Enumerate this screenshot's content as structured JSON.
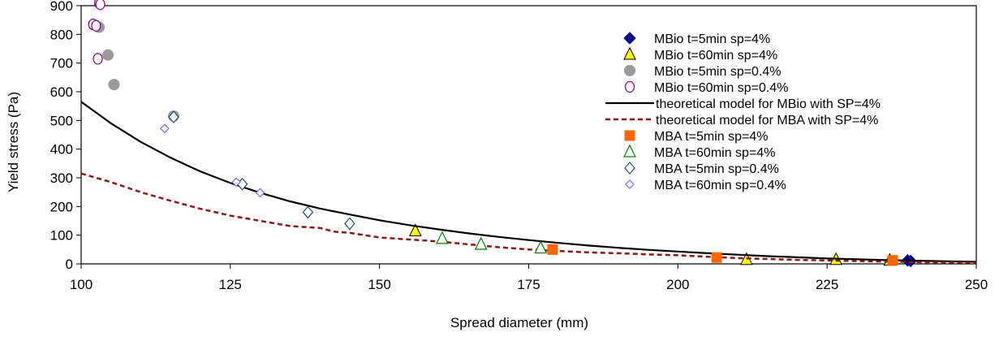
{
  "chart_data": {
    "type": "scatter",
    "xlabel": "Spread diameter (mm)",
    "ylabel": "Yield stress (Pa)",
    "xlim": [
      100,
      250
    ],
    "ylim": [
      0,
      900
    ],
    "x_ticks": [
      100,
      125,
      150,
      175,
      200,
      225,
      250
    ],
    "y_ticks": [
      0,
      100,
      200,
      300,
      400,
      500,
      600,
      700,
      800,
      900
    ],
    "grid": false,
    "legend_position": "top-right",
    "series": [
      {
        "name": "MBio t=5min sp=4%",
        "marker": "diamond-filled",
        "color": "#00008b",
        "points": [
          [
            238.5,
            12
          ],
          [
            239,
            10
          ]
        ]
      },
      {
        "name": "MBio t=60min sp=4%",
        "marker": "triangle-filled",
        "color": "#ffff00",
        "stroke": "#000000",
        "points": [
          [
            156,
            115
          ],
          [
            211.5,
            15
          ],
          [
            226.5,
            15
          ],
          [
            235.5,
            12
          ]
        ]
      },
      {
        "name": "MBio t=5min sp=0.4%",
        "marker": "circle-filled",
        "color": "#999999",
        "points": [
          [
            103,
            825
          ],
          [
            104.5,
            728
          ],
          [
            105.5,
            625
          ],
          [
            115.5,
            515
          ]
        ]
      },
      {
        "name": "MBio t=60min sp=0.4%",
        "marker": "circle-open",
        "color": "#8b008b",
        "points": [
          [
            102,
            835
          ],
          [
            103,
            910
          ],
          [
            103.2,
            905
          ],
          [
            102.5,
            830
          ],
          [
            102.8,
            715
          ]
        ]
      },
      {
        "name": "theoretical model for MBio with SP=4%",
        "style": "line-solid",
        "color": "#000000",
        "points": [
          [
            100,
            565
          ],
          [
            105,
            490
          ],
          [
            110,
            425
          ],
          [
            115,
            370
          ],
          [
            120,
            322
          ],
          [
            125,
            282
          ],
          [
            130,
            248
          ],
          [
            135,
            218
          ],
          [
            140,
            193
          ],
          [
            145,
            172
          ],
          [
            150,
            152
          ],
          [
            155,
            135
          ],
          [
            160,
            120
          ],
          [
            165,
            106
          ],
          [
            170,
            94
          ],
          [
            175,
            83
          ],
          [
            180,
            73
          ],
          [
            185,
            64
          ],
          [
            190,
            56
          ],
          [
            195,
            49
          ],
          [
            200,
            43
          ],
          [
            205,
            37
          ],
          [
            210,
            32
          ],
          [
            215,
            27
          ],
          [
            220,
            23
          ],
          [
            225,
            19
          ],
          [
            230,
            16
          ],
          [
            235,
            13
          ],
          [
            240,
            11
          ],
          [
            245,
            9
          ],
          [
            250,
            7
          ]
        ]
      },
      {
        "name": "theoretical model for MBA with SP=4%",
        "style": "line-dashed",
        "color": "#8b1a1a",
        "points": [
          [
            100,
            315
          ],
          [
            105,
            285
          ],
          [
            110,
            250
          ],
          [
            115,
            220
          ],
          [
            120,
            192
          ],
          [
            125,
            168
          ],
          [
            130,
            150
          ],
          [
            135,
            132
          ],
          [
            140,
            125
          ],
          [
            142.5,
            112
          ],
          [
            145,
            108
          ],
          [
            150,
            92
          ],
          [
            155,
            85
          ],
          [
            160,
            78
          ],
          [
            165,
            68
          ],
          [
            170,
            58
          ],
          [
            175,
            50
          ],
          [
            180,
            45
          ],
          [
            185,
            40
          ],
          [
            190,
            37
          ],
          [
            195,
            33
          ],
          [
            200,
            30
          ],
          [
            205,
            25
          ],
          [
            210,
            20
          ],
          [
            215,
            17
          ],
          [
            220,
            14
          ],
          [
            225,
            12
          ],
          [
            230,
            10
          ],
          [
            235,
            8
          ],
          [
            240,
            6
          ],
          [
            245,
            5
          ],
          [
            250,
            4
          ]
        ]
      },
      {
        "name": "MBA t=5min sp=4%",
        "marker": "square-filled",
        "color": "#ff6600",
        "points": [
          [
            179,
            50
          ],
          [
            206.5,
            22
          ],
          [
            236,
            12
          ]
        ]
      },
      {
        "name": "MBA t=60min sp=4%",
        "marker": "triangle-open",
        "color": "#008000",
        "points": [
          [
            160.5,
            88
          ],
          [
            167,
            68
          ],
          [
            177,
            55
          ]
        ]
      },
      {
        "name": "MBA t=5min sp=0.4%",
        "marker": "diamond-open",
        "color": "#1f4e79",
        "points": [
          [
            115.5,
            512
          ],
          [
            127,
            278
          ],
          [
            138,
            180
          ],
          [
            145,
            140
          ]
        ]
      },
      {
        "name": "MBA t=60min sp=0.4%",
        "marker": "diamond-open-small",
        "color": "#7b68ee",
        "points": [
          [
            114,
            472
          ],
          [
            126,
            285
          ],
          [
            130,
            248
          ]
        ]
      }
    ]
  }
}
